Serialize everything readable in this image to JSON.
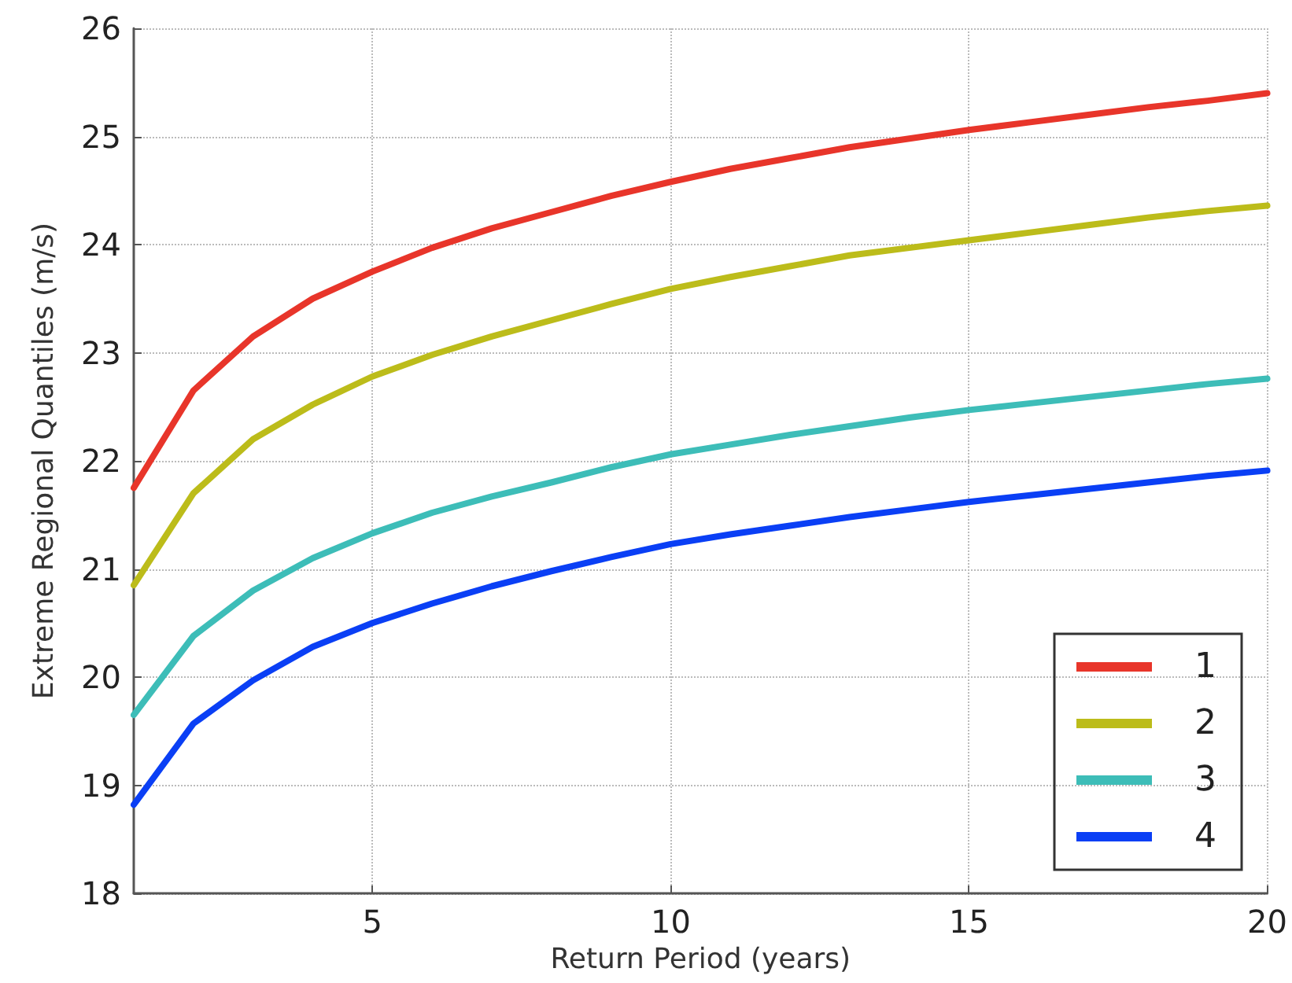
{
  "chart_data": {
    "type": "line",
    "xlabel": "Return Period (years)",
    "ylabel": "Extreme Regional Quantiles (m/s)",
    "x": [
      1,
      2,
      3,
      4,
      5,
      6,
      7,
      8,
      9,
      10,
      11,
      12,
      13,
      14,
      15,
      16,
      17,
      18,
      19,
      20
    ],
    "series": [
      {
        "name": "1",
        "color": "#e8352a",
        "values": [
          21.75,
          22.65,
          23.15,
          23.5,
          23.75,
          23.97,
          24.15,
          24.3,
          24.45,
          24.58,
          24.7,
          24.8,
          24.9,
          24.98,
          25.06,
          25.13,
          25.2,
          25.27,
          25.33,
          25.4
        ]
      },
      {
        "name": "2",
        "color": "#bcbc1a",
        "values": [
          20.85,
          21.7,
          22.2,
          22.52,
          22.78,
          22.98,
          23.15,
          23.3,
          23.45,
          23.59,
          23.7,
          23.8,
          23.9,
          23.97,
          24.04,
          24.11,
          24.18,
          24.25,
          24.31,
          24.36
        ]
      },
      {
        "name": "3",
        "color": "#3dbdb8",
        "values": [
          19.65,
          20.38,
          20.8,
          21.1,
          21.33,
          21.52,
          21.67,
          21.8,
          21.94,
          22.06,
          22.15,
          22.24,
          22.32,
          22.4,
          22.47,
          22.53,
          22.59,
          22.65,
          22.71,
          22.76
        ]
      },
      {
        "name": "4",
        "color": "#0a3ff5",
        "values": [
          18.82,
          19.57,
          19.97,
          20.28,
          20.5,
          20.68,
          20.84,
          20.98,
          21.11,
          21.23,
          21.32,
          21.4,
          21.48,
          21.55,
          21.62,
          21.68,
          21.74,
          21.8,
          21.86,
          21.91
        ]
      }
    ],
    "xlim": [
      1,
      20
    ],
    "xticks": [
      5,
      10,
      15,
      20
    ],
    "ylim": [
      18,
      26
    ],
    "yticks": [
      18,
      19,
      20,
      21,
      22,
      23,
      24,
      25,
      26
    ],
    "grid": true,
    "legend": "bottom right",
    "marker": "none",
    "line_style": "solid"
  }
}
